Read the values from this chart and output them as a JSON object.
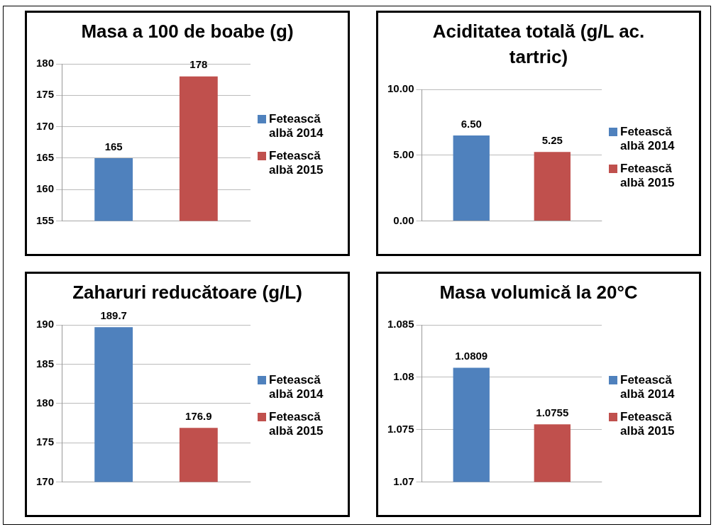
{
  "chart_data": [
    {
      "type": "bar",
      "title": "Masa a 100 de boabe (g)",
      "categories": [
        null
      ],
      "series": [
        {
          "name": "Fetească albă 2014",
          "color": "#4f81bd",
          "values": [
            165
          ]
        },
        {
          "name": "Fetească albă 2015",
          "color": "#c0504d",
          "values": [
            178
          ]
        }
      ],
      "ylim": [
        155,
        180
      ],
      "yticks": [
        155,
        160,
        165,
        170,
        175,
        180
      ],
      "grid": "y",
      "legend": "right",
      "data_labels": true
    },
    {
      "type": "bar",
      "title": "Aciditatea totală (g/L ac. tartric)",
      "categories": [
        null
      ],
      "series": [
        {
          "name": "Fetească albă 2014",
          "color": "#4f81bd",
          "values": [
            6.5
          ],
          "value_labels": [
            "6.50"
          ]
        },
        {
          "name": "Fetească albă 2015",
          "color": "#c0504d",
          "values": [
            5.25
          ],
          "value_labels": [
            "5.25"
          ]
        }
      ],
      "ylim": [
        0,
        10
      ],
      "yticks": [
        {
          "value": 0,
          "label": "0.00"
        },
        {
          "value": 5,
          "label": "5.00"
        },
        {
          "value": 10,
          "label": "10.00"
        }
      ],
      "grid": "y",
      "legend": "right"
    },
    {
      "type": "bar",
      "title": "Zaharuri reducătoare (g/L)",
      "categories": [
        null
      ],
      "series": [
        {
          "name": "Fetească albă 2014",
          "color": "#4f81bd",
          "values": [
            189.7
          ]
        },
        {
          "name": "Fetească albă 2015",
          "color": "#c0504d",
          "values": [
            176.9
          ]
        }
      ],
      "ylim": [
        170,
        190
      ],
      "yticks": [
        170,
        175,
        180,
        185,
        190
      ],
      "grid": "y",
      "legend": "right",
      "data_labels": true
    },
    {
      "type": "bar",
      "title": "Masa volumică la 20°C",
      "categories": [
        null
      ],
      "series": [
        {
          "name": "Fetească albă 2014",
          "color": "#4f81bd",
          "values": [
            1.0809
          ]
        },
        {
          "name": "Fetească albă 2015",
          "color": "#c0504d",
          "values": [
            1.0755
          ]
        }
      ],
      "ylim": [
        1.07,
        1.085
      ],
      "yticks": [
        1.07,
        1.075,
        1.08,
        1.085
      ],
      "grid": "y",
      "legend": "right",
      "data_labels": true
    }
  ]
}
